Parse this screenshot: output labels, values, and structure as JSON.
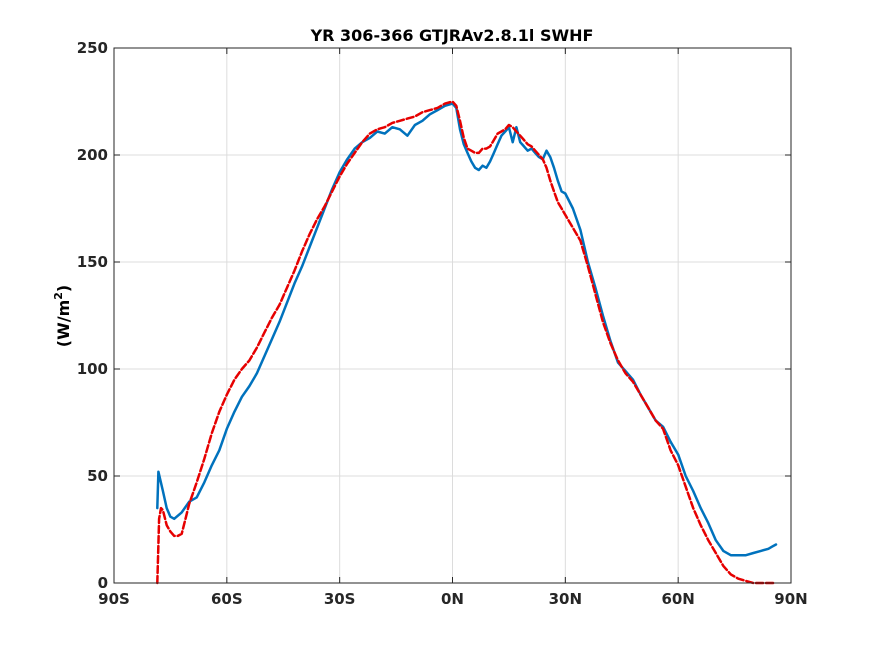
{
  "chart_data": {
    "type": "line",
    "title": "YR 306-366 GTJRAv2.8.1l    SWHF",
    "ylabel_main": "(W/m",
    "ylabel_sup": "2",
    "ylabel_close": ")",
    "xlabel": "",
    "xlim": [
      -90,
      90
    ],
    "ylim": [
      0,
      250
    ],
    "xticks": [
      -90,
      -60,
      -30,
      0,
      30,
      60,
      90
    ],
    "xtick_labels": [
      "90S",
      "60S",
      "30S",
      "0N",
      "30N",
      "60N",
      "90N"
    ],
    "yticks": [
      0,
      50,
      100,
      150,
      200,
      250
    ],
    "ytick_labels": [
      "0",
      "50",
      "100",
      "150",
      "200",
      "250"
    ],
    "grid": true,
    "series": [
      {
        "name": "",
        "color": "#0072BD",
        "style": "solid",
        "x": [
          -78.5,
          -78.2,
          -77,
          -76,
          -75,
          -74,
          -72,
          -70,
          -68,
          -66,
          -64,
          -62,
          -60,
          -58,
          -56,
          -54,
          -52,
          -50,
          -48,
          -46,
          -44,
          -42,
          -40,
          -38,
          -36,
          -34,
          -32,
          -30,
          -28,
          -26,
          -24,
          -22,
          -20,
          -18,
          -16,
          -14,
          -12,
          -10,
          -8,
          -6,
          -4,
          -2,
          0,
          1,
          2,
          3,
          4,
          5,
          6,
          7,
          8,
          9,
          10,
          11,
          12,
          13,
          14,
          15,
          16,
          17,
          18,
          19,
          20,
          21,
          22,
          23,
          24,
          25,
          26,
          27,
          28,
          29,
          30,
          32,
          34,
          36,
          38,
          40,
          42,
          44,
          46,
          48,
          50,
          52,
          54,
          56,
          58,
          60,
          62,
          64,
          66,
          68,
          70,
          72,
          74,
          76,
          78,
          80,
          82,
          84,
          85,
          86
        ],
        "y": [
          35,
          52,
          43,
          35,
          31,
          30,
          33,
          38,
          40,
          47,
          55,
          62,
          72,
          80,
          87,
          92,
          98,
          106,
          114,
          122,
          131,
          140,
          148,
          157,
          166,
          175,
          184,
          192,
          198,
          203,
          206,
          208,
          211,
          210,
          213,
          212,
          209,
          214,
          216,
          219,
          221,
          223,
          224,
          222,
          212,
          205,
          201,
          197,
          194,
          193,
          195,
          194,
          197,
          201,
          205,
          209,
          211,
          213,
          206,
          213,
          206,
          204,
          202,
          203,
          201,
          199,
          198,
          202,
          199,
          194,
          188,
          183,
          182,
          175,
          165,
          150,
          138,
          125,
          113,
          103,
          99,
          95,
          88,
          82,
          76,
          73,
          66,
          60,
          50,
          43,
          35,
          28,
          20,
          15,
          13,
          13,
          13,
          14,
          15,
          16,
          17,
          18
        ]
      },
      {
        "name": "",
        "color": "#E60000",
        "style": "dashed",
        "x": [
          -78.5,
          -78.2,
          -78,
          -77.5,
          -77,
          -76,
          -75,
          -74,
          -73,
          -72,
          -71,
          -70,
          -69,
          -68,
          -66,
          -64,
          -62,
          -60,
          -58,
          -56,
          -54,
          -52,
          -50,
          -48,
          -46,
          -44,
          -42,
          -40,
          -38,
          -36,
          -34,
          -32,
          -30,
          -28,
          -26,
          -24,
          -22,
          -20,
          -18,
          -16,
          -14,
          -12,
          -10,
          -8,
          -6,
          -4,
          -2,
          0,
          1,
          2,
          3,
          4,
          5,
          6,
          7,
          8,
          9,
          10,
          11,
          12,
          13,
          14,
          15,
          16,
          17,
          18,
          19,
          20,
          21,
          22,
          23,
          24,
          25,
          26,
          27,
          28,
          29,
          30,
          32,
          34,
          36,
          38,
          40,
          42,
          44,
          46,
          48,
          50,
          52,
          54,
          56,
          58,
          60,
          62,
          64,
          66,
          68,
          70,
          72,
          74,
          76,
          78,
          80,
          82,
          84,
          85,
          86
        ],
        "y": [
          0,
          18,
          30,
          35,
          34,
          27,
          24,
          22,
          22,
          23,
          30,
          37,
          42,
          47,
          58,
          70,
          80,
          88,
          95,
          100,
          104,
          110,
          117,
          124,
          130,
          138,
          146,
          155,
          163,
          170,
          176,
          183,
          190,
          196,
          201,
          206,
          210,
          212,
          213,
          215,
          216,
          217,
          218,
          220,
          221,
          222,
          224,
          225,
          223,
          216,
          208,
          203,
          202,
          201,
          201,
          203,
          203,
          204,
          207,
          210,
          211,
          212,
          214,
          213,
          211,
          209,
          207,
          205,
          204,
          202,
          200,
          198,
          194,
          188,
          183,
          178,
          175,
          172,
          166,
          160,
          148,
          135,
          122,
          112,
          104,
          98,
          94,
          88,
          82,
          76,
          72,
          62,
          55,
          45,
          35,
          27,
          20,
          14,
          8,
          4,
          2,
          1,
          0,
          0,
          0,
          0,
          0
        ]
      }
    ]
  }
}
